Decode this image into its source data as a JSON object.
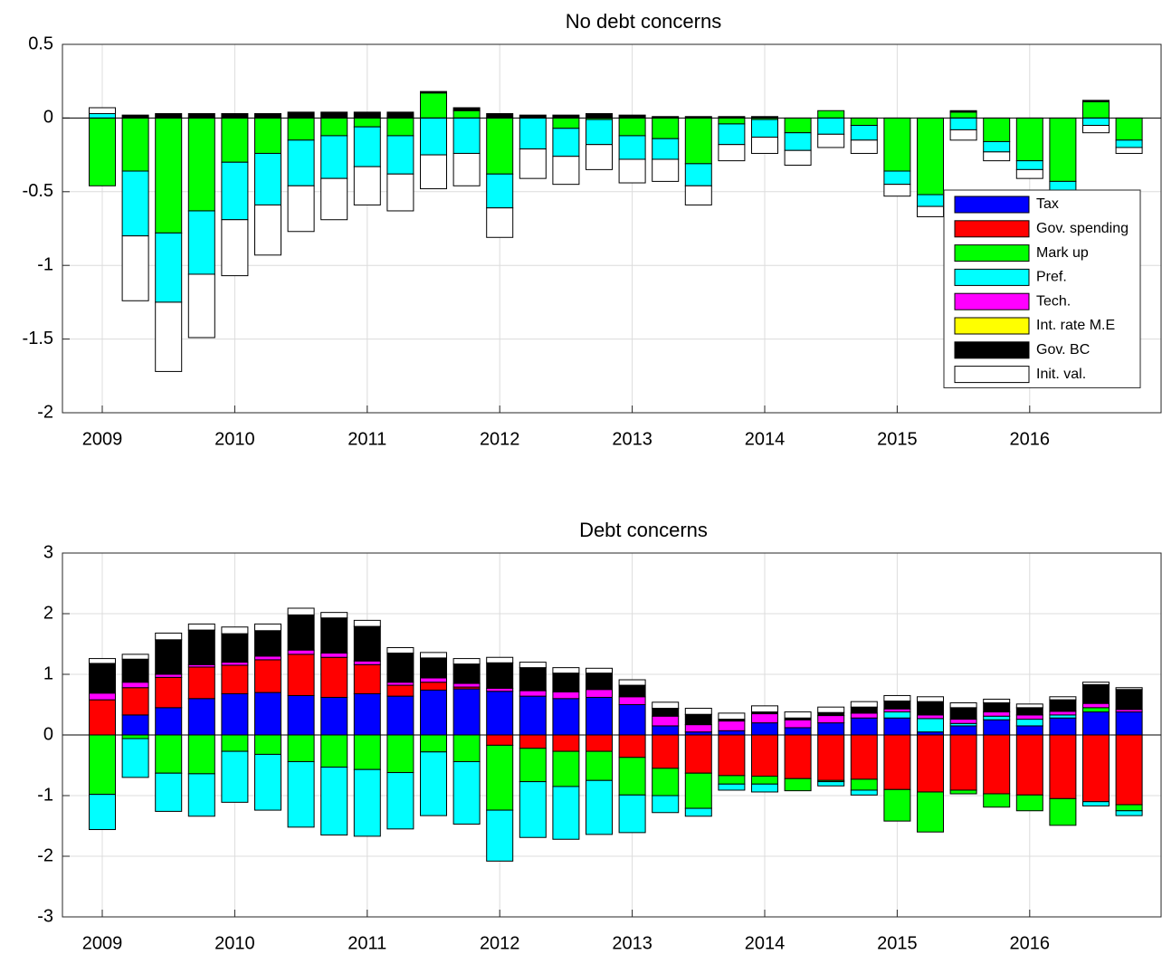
{
  "chart_data": [
    {
      "type": "bar",
      "stacked": true,
      "title": "No debt concerns",
      "categories": [
        "2009",
        null,
        null,
        null,
        "2010",
        null,
        null,
        null,
        "2011",
        null,
        null,
        null,
        "2012",
        null,
        null,
        null,
        "2013",
        null,
        null,
        null,
        "2014",
        null,
        null,
        null,
        "2015",
        null,
        null,
        null,
        "2016",
        null,
        null,
        null
      ],
      "ylim": [
        -2,
        0.5
      ],
      "yticks": [
        -2,
        -1.5,
        -1,
        -0.5,
        0,
        0.5
      ],
      "grid": true,
      "legend": "east",
      "series": [
        {
          "name": "Tax",
          "color": "#0000ff",
          "values": [
            0,
            0,
            0,
            0,
            0,
            0,
            0,
            0,
            0,
            0,
            0,
            0,
            0,
            0,
            0,
            0,
            0,
            0,
            0,
            0,
            0,
            0,
            0,
            0,
            0,
            0,
            0,
            0,
            0,
            0,
            0,
            0
          ]
        },
        {
          "name": "Gov. spending",
          "color": "#ff0000",
          "values": [
            0,
            0,
            0,
            0,
            0,
            0,
            0,
            0,
            0,
            0,
            0,
            0,
            0,
            0,
            0,
            0,
            0,
            0,
            0,
            0,
            0,
            0,
            0,
            0,
            0,
            0,
            0,
            0,
            0,
            0,
            0,
            0
          ]
        },
        {
          "name": "Mark up",
          "color": "#00ff00",
          "values": [
            -0.46,
            -0.36,
            -0.78,
            -0.63,
            -0.3,
            -0.24,
            -0.15,
            -0.12,
            -0.06,
            -0.12,
            0.17,
            0.05,
            -0.38,
            0,
            -0.07,
            -0.01,
            -0.12,
            -0.14,
            -0.31,
            -0.04,
            -0.01,
            -0.1,
            0.05,
            -0.05,
            -0.36,
            -0.52,
            0.04,
            -0.16,
            -0.29,
            -0.43,
            0.11,
            -0.15
          ]
        },
        {
          "name": "Pref.",
          "color": "#00ffff",
          "values": [
            0.03,
            -0.44,
            -0.47,
            -0.43,
            -0.39,
            -0.35,
            -0.31,
            -0.29,
            -0.27,
            -0.26,
            -0.25,
            -0.24,
            -0.23,
            -0.21,
            -0.19,
            -0.17,
            -0.16,
            -0.14,
            -0.15,
            -0.14,
            -0.12,
            -0.12,
            -0.11,
            -0.1,
            -0.09,
            -0.08,
            -0.08,
            -0.07,
            -0.06,
            -0.06,
            -0.05,
            -0.05
          ]
        },
        {
          "name": "Tech.",
          "color": "#ff00ff",
          "values": [
            0,
            0,
            0,
            0,
            0,
            0,
            0,
            0,
            0,
            0,
            0,
            0,
            0,
            0,
            0,
            0,
            0,
            0,
            0,
            0,
            0,
            0,
            0,
            0,
            0,
            0,
            0,
            0,
            0,
            0,
            0,
            0
          ]
        },
        {
          "name": "Int. rate M.E",
          "color": "#ffff00",
          "values": [
            0,
            0,
            0,
            0,
            0,
            0,
            0,
            0,
            0,
            0,
            0,
            0,
            0,
            0,
            0,
            0,
            0,
            0,
            0,
            0,
            0,
            0,
            0,
            0,
            0,
            0,
            0,
            0,
            0,
            0,
            0,
            0
          ]
        },
        {
          "name": "Gov. BC",
          "color": "#000000",
          "values": [
            0,
            0.02,
            0.03,
            0.03,
            0.03,
            0.03,
            0.04,
            0.04,
            0.04,
            0.04,
            0.01,
            0.02,
            0.03,
            0.02,
            0.02,
            0.03,
            0.02,
            0.01,
            0.01,
            0.01,
            0.01,
            0,
            0,
            0,
            0,
            0,
            0.01,
            0,
            0,
            0,
            0.01,
            0
          ]
        },
        {
          "name": "Init. val.",
          "color": "#ffffff",
          "values": [
            0.04,
            -0.44,
            -0.47,
            -0.43,
            -0.38,
            -0.34,
            -0.31,
            -0.28,
            -0.26,
            -0.25,
            -0.23,
            -0.22,
            -0.2,
            -0.2,
            -0.19,
            -0.17,
            -0.16,
            -0.15,
            -0.13,
            -0.11,
            -0.11,
            -0.1,
            -0.09,
            -0.09,
            -0.08,
            -0.07,
            -0.07,
            -0.06,
            -0.06,
            -0.05,
            -0.05,
            -0.04
          ]
        }
      ]
    },
    {
      "type": "bar",
      "stacked": true,
      "title": "Debt concerns",
      "categories": [
        "2009",
        null,
        null,
        null,
        "2010",
        null,
        null,
        null,
        "2011",
        null,
        null,
        null,
        "2012",
        null,
        null,
        null,
        "2013",
        null,
        null,
        null,
        "2014",
        null,
        null,
        null,
        "2015",
        null,
        null,
        null,
        "2016",
        null,
        null,
        null
      ],
      "ylim": [
        -3,
        3
      ],
      "yticks": [
        -3,
        -2,
        -1,
        0,
        1,
        2,
        3
      ],
      "grid": true,
      "series": [
        {
          "name": "Tax",
          "color": "#0000ff",
          "values": [
            0,
            0.33,
            0.45,
            0.6,
            0.68,
            0.7,
            0.65,
            0.62,
            0.68,
            0.64,
            0.74,
            0.76,
            0.72,
            0.64,
            0.6,
            0.62,
            0.5,
            0.15,
            0.05,
            0.07,
            0.2,
            0.12,
            0.2,
            0.28,
            0.28,
            0.05,
            0.15,
            0.25,
            0.15,
            0.28,
            0.38,
            0.38
          ]
        },
        {
          "name": "Gov. spending",
          "color": "#ff0000",
          "values": [
            0.58,
            0.45,
            0.5,
            0.52,
            0.47,
            0.54,
            0.68,
            0.66,
            0.48,
            0.18,
            0.13,
            0.03,
            -0.17,
            -0.22,
            -0.27,
            -0.27,
            -0.37,
            -0.55,
            -0.63,
            -0.67,
            -0.68,
            -0.72,
            -0.75,
            -0.73,
            -0.9,
            -0.94,
            -0.91,
            -0.97,
            -0.99,
            -1.05,
            -1.1,
            -1.15
          ]
        },
        {
          "name": "Mark up",
          "color": "#00ff00",
          "values": [
            -0.98,
            -0.06,
            -0.63,
            -0.64,
            -0.27,
            -0.32,
            -0.44,
            -0.53,
            -0.57,
            -0.62,
            -0.28,
            -0.44,
            -1.07,
            -0.55,
            -0.58,
            -0.48,
            -0.62,
            -0.45,
            -0.58,
            -0.14,
            -0.13,
            -0.2,
            -0.02,
            -0.18,
            -0.52,
            -0.66,
            -0.06,
            -0.22,
            -0.26,
            -0.44,
            0.07,
            -0.1
          ]
        },
        {
          "name": "Pref.",
          "color": "#00ffff",
          "values": [
            -0.58,
            -0.64,
            -0.63,
            -0.7,
            -0.84,
            -0.92,
            -1.08,
            -1.12,
            -1.1,
            -0.93,
            -1.05,
            -1.03,
            -0.84,
            -0.92,
            -0.87,
            -0.89,
            -0.62,
            -0.28,
            -0.13,
            -0.1,
            -0.13,
            0,
            -0.07,
            -0.08,
            0.1,
            0.22,
            0.04,
            0.06,
            0.11,
            0.05,
            -0.07,
            -0.08
          ]
        },
        {
          "name": "Tech.",
          "color": "#ff00ff",
          "values": [
            0.11,
            0.09,
            0.05,
            0.04,
            0.05,
            0.06,
            0.07,
            0.07,
            0.06,
            0.05,
            0.07,
            0.06,
            0.05,
            0.09,
            0.11,
            0.13,
            0.13,
            0.16,
            0.12,
            0.16,
            0.15,
            0.13,
            0.12,
            0.08,
            0.05,
            0.06,
            0.07,
            0.07,
            0.07,
            0.06,
            0.07,
            0.04
          ]
        },
        {
          "name": "Int. rate M.E",
          "color": "#ffff00",
          "values": [
            0,
            0,
            0,
            0,
            0,
            0,
            0,
            0,
            0,
            0,
            0,
            0,
            0,
            0,
            0,
            0,
            0,
            0,
            0,
            0,
            0,
            0,
            0,
            0,
            0,
            0,
            0,
            0,
            0,
            0,
            0,
            0
          ]
        },
        {
          "name": "Gov. BC",
          "color": "#000000",
          "values": [
            0.49,
            0.38,
            0.57,
            0.57,
            0.47,
            0.42,
            0.58,
            0.58,
            0.57,
            0.48,
            0.33,
            0.32,
            0.42,
            0.38,
            0.31,
            0.27,
            0.19,
            0.13,
            0.17,
            0.03,
            0.03,
            0.03,
            0.05,
            0.1,
            0.13,
            0.22,
            0.19,
            0.15,
            0.12,
            0.19,
            0.31,
            0.33
          ]
        },
        {
          "name": "Init. val.",
          "color": "#ffffff",
          "values": [
            0.08,
            0.08,
            0.11,
            0.1,
            0.11,
            0.11,
            0.11,
            0.09,
            0.1,
            0.09,
            0.09,
            0.09,
            0.09,
            0.09,
            0.09,
            0.08,
            0.09,
            0.1,
            0.1,
            0.1,
            0.1,
            0.1,
            0.09,
            0.09,
            0.09,
            0.08,
            0.08,
            0.06,
            0.06,
            0.05,
            0.04,
            0.03
          ]
        }
      ]
    }
  ]
}
